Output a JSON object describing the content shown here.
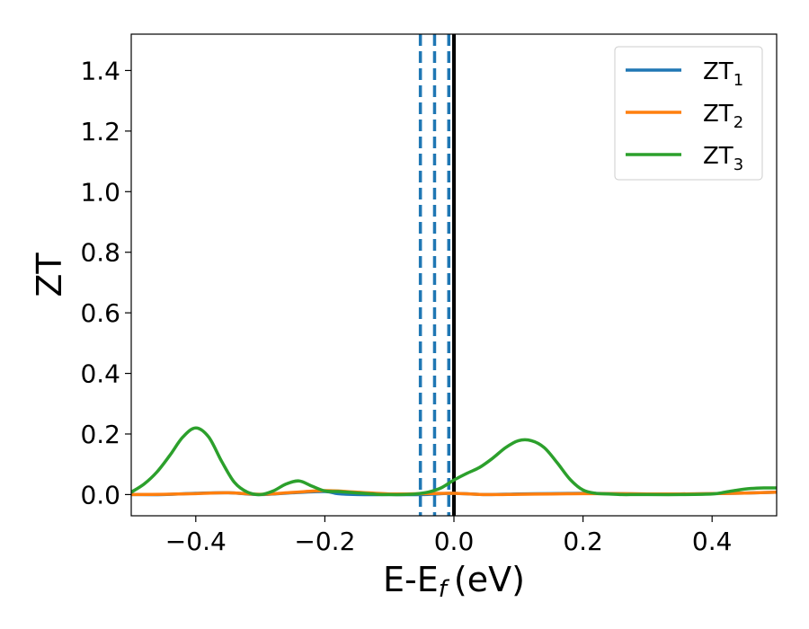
{
  "chart_data": {
    "type": "line",
    "xlabel": "E-E",
    "xlabel_sub": "f",
    "xlabel_unit": "(eV)",
    "ylabel": "ZT",
    "xlim": [
      -0.5,
      0.5
    ],
    "ylim": [
      -0.07,
      1.52
    ],
    "xticks": [
      -0.4,
      -0.2,
      0.0,
      0.2,
      0.4
    ],
    "xtick_labels": [
      "−0.4",
      "−0.2",
      "0.0",
      "0.2",
      "0.4"
    ],
    "yticks": [
      0.0,
      0.2,
      0.4,
      0.6,
      0.8,
      1.0,
      1.2,
      1.4
    ],
    "ytick_labels": [
      "0.0",
      "0.2",
      "0.4",
      "0.6",
      "0.8",
      "1.0",
      "1.2",
      "1.4"
    ],
    "grid": false,
    "legend": {
      "position": "top-right"
    },
    "vlines": [
      {
        "x": -0.052,
        "style": "dashed",
        "color": "#1f77b4"
      },
      {
        "x": -0.03,
        "style": "dashed",
        "color": "#1f77b4"
      },
      {
        "x": -0.008,
        "style": "dashed",
        "color": "#1f77b4"
      },
      {
        "x": 0.0,
        "style": "solid",
        "color": "#000000"
      }
    ],
    "series": [
      {
        "name": "ZT",
        "sub": "1",
        "color": "#1f77b4",
        "x": [
          -0.5,
          -0.45,
          -0.4,
          -0.35,
          -0.3,
          -0.25,
          -0.2,
          -0.18,
          -0.15,
          -0.1,
          -0.05,
          0.0,
          0.05,
          0.1,
          0.15,
          0.2,
          0.25,
          0.3,
          0.35,
          0.4,
          0.45,
          0.5
        ],
        "y": [
          0.0,
          0.0,
          0.004,
          0.006,
          0.0,
          0.006,
          0.01,
          0.003,
          0.0,
          0.0,
          0.0,
          0.004,
          0.0,
          0.002,
          0.003,
          0.004,
          0.003,
          0.002,
          0.002,
          0.003,
          0.005,
          0.008
        ]
      },
      {
        "name": "ZT",
        "sub": "2",
        "color": "#ff7f0e",
        "x": [
          -0.5,
          -0.45,
          -0.4,
          -0.35,
          -0.3,
          -0.25,
          -0.2,
          -0.15,
          -0.1,
          -0.05,
          0.0,
          0.05,
          0.1,
          0.15,
          0.2,
          0.25,
          0.3,
          0.35,
          0.4,
          0.45,
          0.5
        ],
        "y": [
          0.0,
          0.001,
          0.003,
          0.006,
          0.001,
          0.007,
          0.013,
          0.008,
          0.002,
          0.003,
          0.004,
          0.0,
          0.001,
          0.002,
          0.003,
          0.003,
          0.002,
          0.002,
          0.003,
          0.005,
          0.008
        ]
      },
      {
        "name": "ZT",
        "sub": "3",
        "color": "#2ca02c",
        "x": [
          -0.5,
          -0.48,
          -0.46,
          -0.44,
          -0.42,
          -0.4,
          -0.38,
          -0.36,
          -0.34,
          -0.32,
          -0.3,
          -0.28,
          -0.26,
          -0.24,
          -0.22,
          -0.2,
          -0.18,
          -0.16,
          -0.14,
          -0.12,
          -0.1,
          -0.08,
          -0.06,
          -0.04,
          -0.02,
          0.0,
          0.02,
          0.04,
          0.06,
          0.08,
          0.1,
          0.12,
          0.14,
          0.16,
          0.18,
          0.2,
          0.22,
          0.24,
          0.26,
          0.28,
          0.3,
          0.35,
          0.4,
          0.42,
          0.44,
          0.46,
          0.48,
          0.5
        ],
        "y": [
          0.008,
          0.035,
          0.075,
          0.13,
          0.19,
          0.22,
          0.19,
          0.11,
          0.04,
          0.008,
          0.0,
          0.012,
          0.035,
          0.045,
          0.028,
          0.012,
          0.01,
          0.007,
          0.004,
          0.001,
          0.0,
          0.0,
          0.002,
          0.008,
          0.022,
          0.048,
          0.07,
          0.09,
          0.12,
          0.155,
          0.178,
          0.178,
          0.155,
          0.105,
          0.05,
          0.015,
          0.004,
          0.002,
          0.0,
          0.0,
          0.0,
          0.0,
          0.002,
          0.008,
          0.015,
          0.02,
          0.022,
          0.022
        ]
      }
    ]
  }
}
